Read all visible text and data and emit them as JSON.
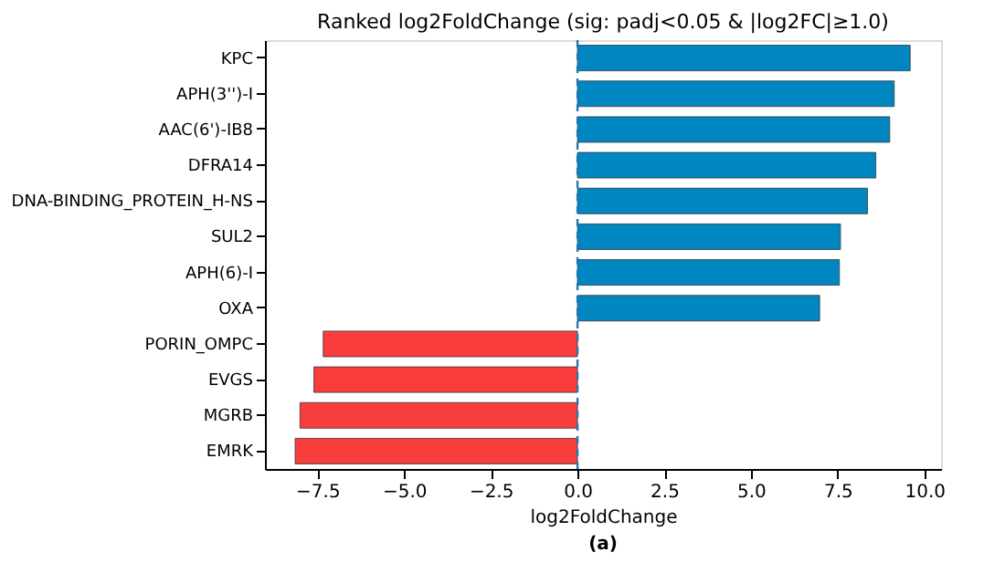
{
  "chart_data": {
    "type": "bar",
    "orientation": "horizontal",
    "title": "Ranked log2FoldChange (sig: padj<0.05 & |log2FC|≥1.0)",
    "xlabel": "log2FoldChange",
    "categories": [
      "KPC",
      "APH(3'')-I",
      "AAC(6')-IB8",
      "DFRA14",
      "DNA-BINDING_PROTEIN_H-NS",
      "SUL2",
      "APH(6)-I",
      "OXA",
      "PORIN_OMPC",
      "EVGS",
      "MGRB",
      "EMRK"
    ],
    "values": [
      9.59,
      9.13,
      9.0,
      8.6,
      8.36,
      7.58,
      7.55,
      6.98,
      -7.33,
      -7.6,
      -8.0,
      -8.14
    ],
    "colors": [
      "#0086c0",
      "#0086c0",
      "#0086c0",
      "#0086c0",
      "#0086c0",
      "#0086c0",
      "#0086c0",
      "#0086c0",
      "#f93c3c",
      "#f93c3c",
      "#f93c3c",
      "#f93c3c"
    ],
    "xlim": [
      -9.01,
      10.48
    ],
    "xticks": [
      {
        "value": -7.5,
        "label": "−7.5"
      },
      {
        "value": -5,
        "label": "−5.0"
      },
      {
        "value": -2.5,
        "label": "−2.5"
      },
      {
        "value": 0,
        "label": "0.0"
      },
      {
        "value": 2.5,
        "label": "2.5"
      },
      {
        "value": 5,
        "label": "5.0"
      },
      {
        "value": 7.5,
        "label": "7.5"
      },
      {
        "value": 10,
        "label": "10.0"
      }
    ],
    "ref_lines": [
      {
        "axis": "x",
        "value": 0,
        "color": "#1f77b4",
        "line_style": "dashed"
      }
    ],
    "grid": false,
    "annotations": [
      "(a)"
    ]
  }
}
